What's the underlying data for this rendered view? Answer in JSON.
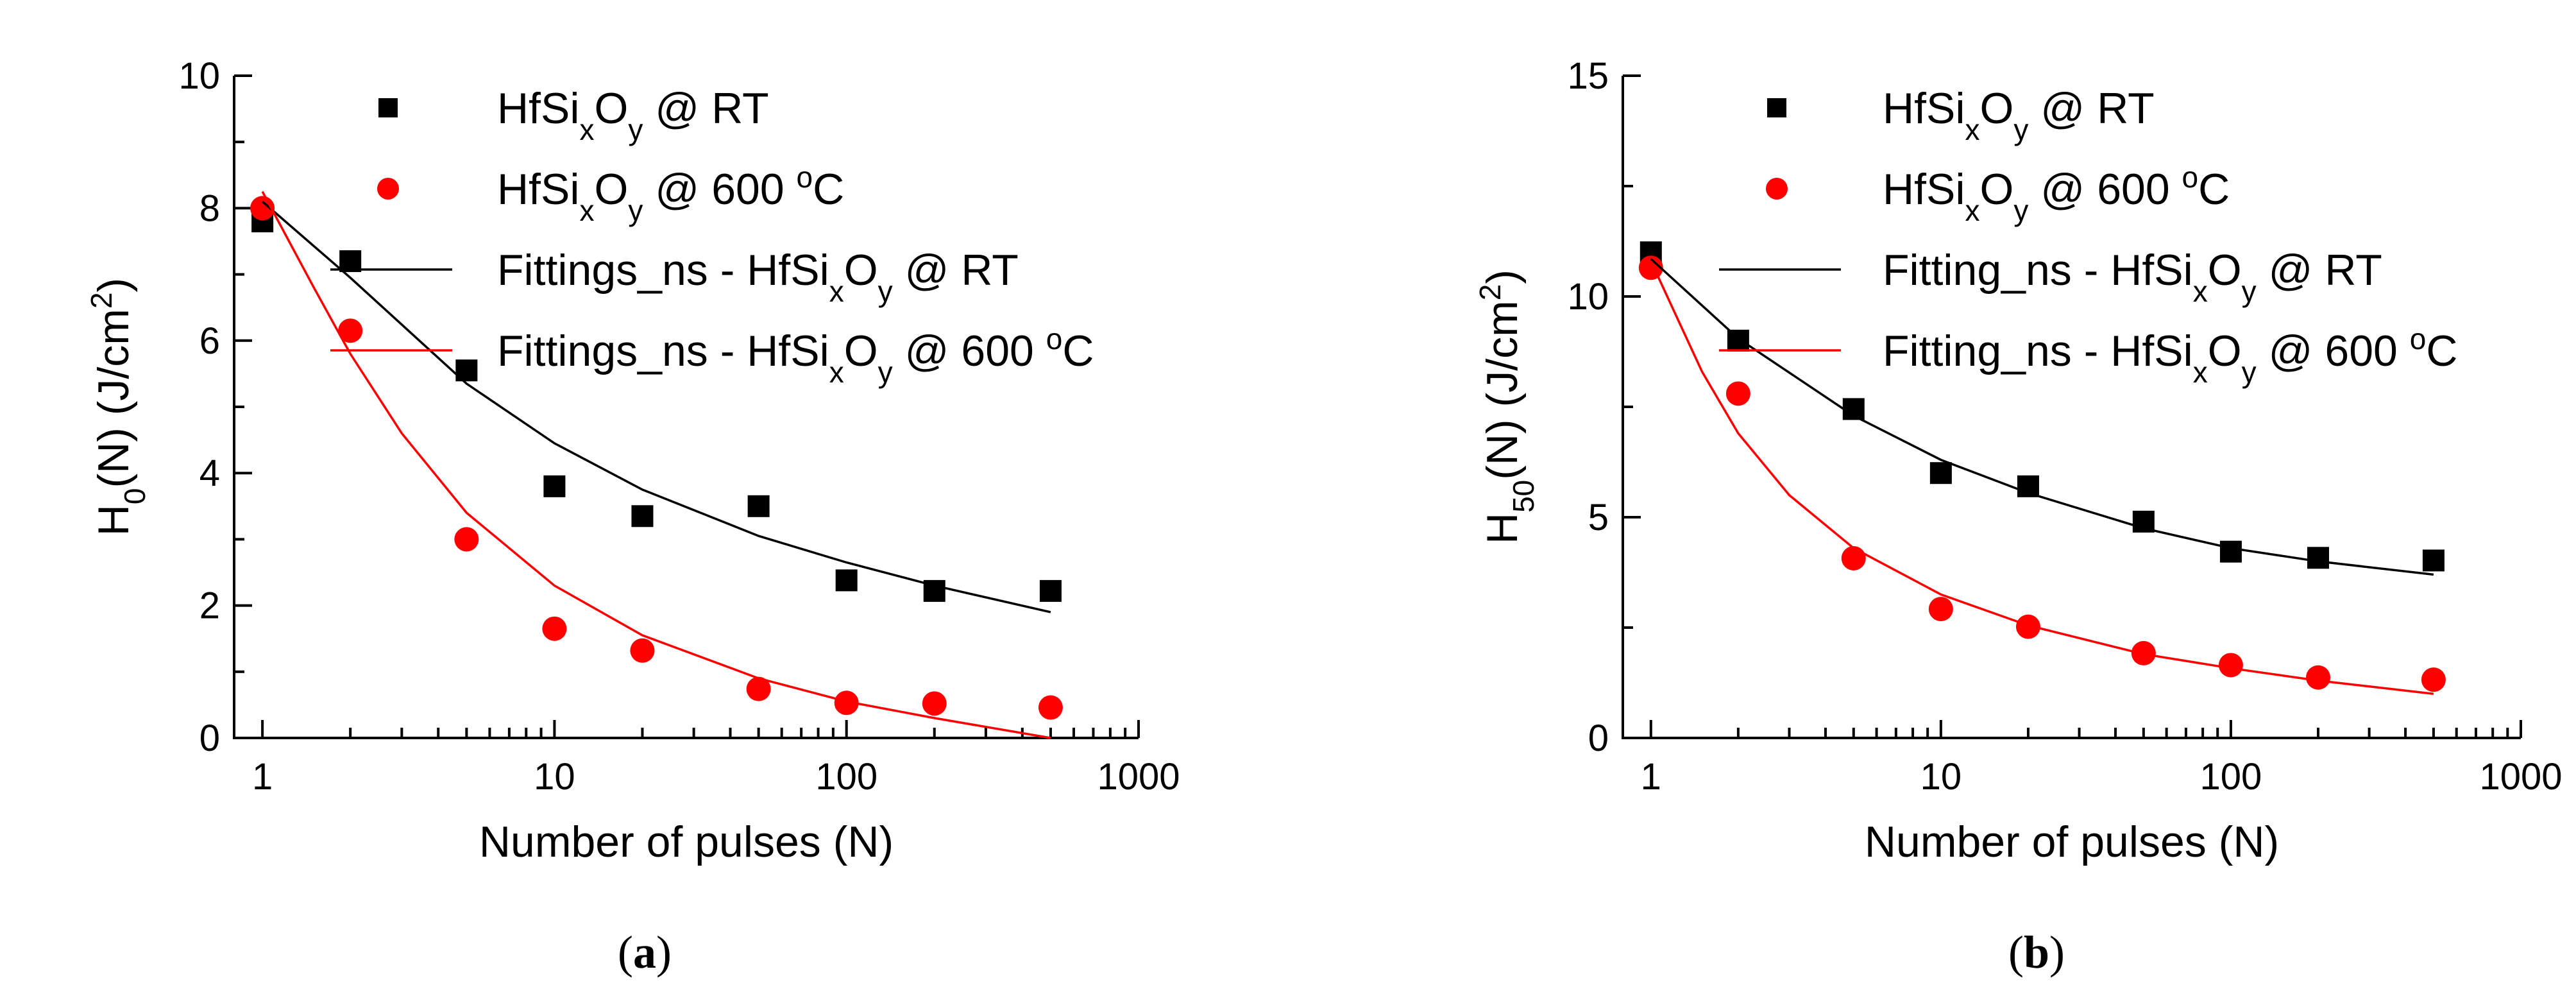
{
  "chart_data": [
    {
      "type": "scatter",
      "panel_label": "a",
      "xscale": "log",
      "xlim": [
        0.8,
        1000
      ],
      "ylim": [
        0,
        10
      ],
      "xticks": [
        1,
        10,
        100,
        1000
      ],
      "yticks": [
        0,
        2,
        4,
        6,
        8,
        10
      ],
      "xlabel": "Number of pulses (N)",
      "ylabel": {
        "main": "H",
        "sub": "0",
        "rest": "(N) (J/cm",
        "sup": "2",
        "end": ")"
      },
      "legend_position": "top-right",
      "series": [
        {
          "name": "HfSixOy @ RT",
          "marker": "square",
          "color": "#000000",
          "x": [
            1,
            2,
            5,
            10,
            20,
            50,
            100,
            200,
            500
          ],
          "y": [
            7.8,
            7.2,
            5.55,
            3.8,
            3.35,
            3.5,
            2.38,
            2.22,
            2.22
          ]
        },
        {
          "name": "HfSixOy @ 600 oC",
          "marker": "circle",
          "color": "#ff0000",
          "x": [
            1,
            2,
            5,
            10,
            20,
            50,
            100,
            200,
            500
          ],
          "y": [
            8.0,
            6.15,
            3.0,
            1.65,
            1.32,
            0.74,
            0.53,
            0.52,
            0.46
          ]
        },
        {
          "name": "Fittings_ns - HfSixOy @ RT",
          "line": true,
          "color": "#000000",
          "x": [
            1,
            2,
            5,
            10,
            20,
            50,
            100,
            200,
            500
          ],
          "y": [
            8.1,
            6.95,
            5.35,
            4.45,
            3.75,
            3.05,
            2.65,
            2.3,
            1.9
          ]
        },
        {
          "name": "Fittings_ns - HfSixOy @ 600 oC",
          "line": true,
          "color": "#ff0000",
          "x": [
            1,
            1.5,
            2,
            3,
            5,
            10,
            20,
            50,
            100,
            200,
            500
          ],
          "y": [
            8.25,
            6.8,
            5.8,
            4.6,
            3.4,
            2.3,
            1.55,
            0.9,
            0.55,
            0.3,
            0.0
          ]
        }
      ],
      "legend": [
        {
          "pre": "HfSi",
          "sub1": "x",
          "mid": "O",
          "sub2": "y",
          "post": " @ RT"
        },
        {
          "pre": "HfSi",
          "sub1": "x",
          "mid": "O",
          "sub2": "y",
          "post": " @ 600 ",
          "sup": "o",
          "end": "C"
        },
        {
          "pre": "Fittings_ns - HfSi",
          "sub1": "x",
          "mid": "O",
          "sub2": "y",
          "post": " @ RT"
        },
        {
          "pre": "Fittings_ns - HfSi",
          "sub1": "x",
          "mid": "O",
          "sub2": "y",
          "post": " @ 600 ",
          "sup": "o",
          "end": "C"
        }
      ]
    },
    {
      "type": "scatter",
      "panel_label": "b",
      "xscale": "log",
      "xlim": [
        0.8,
        1000
      ],
      "ylim": [
        0,
        15
      ],
      "xticks": [
        1,
        10,
        100,
        1000
      ],
      "yticks": [
        0,
        5,
        10,
        15
      ],
      "xlabel": "Number of pulses (N)",
      "ylabel": {
        "main": "H",
        "sub": "50",
        "rest": "(N) (J/cm",
        "sup": "2",
        "end": ")"
      },
      "legend_position": "top-right",
      "series": [
        {
          "name": "HfSixOy @ RT",
          "marker": "square",
          "color": "#000000",
          "x": [
            1,
            2,
            5,
            10,
            20,
            50,
            100,
            200,
            500
          ],
          "y": [
            11.0,
            9.0,
            7.45,
            6.0,
            5.7,
            4.9,
            4.22,
            4.08,
            4.02
          ]
        },
        {
          "name": "HfSixOy @ 600 oC",
          "marker": "circle",
          "color": "#ff0000",
          "x": [
            1,
            2,
            5,
            10,
            20,
            50,
            100,
            200,
            500
          ],
          "y": [
            10.65,
            7.8,
            4.07,
            2.92,
            2.52,
            1.92,
            1.65,
            1.37,
            1.32
          ]
        },
        {
          "name": "Fitting_ns - HfSixOy @ RT",
          "line": true,
          "color": "#000000",
          "x": [
            1,
            2,
            5,
            10,
            20,
            50,
            100,
            200,
            500
          ],
          "y": [
            10.85,
            9.05,
            7.3,
            6.3,
            5.55,
            4.75,
            4.3,
            4.0,
            3.7
          ]
        },
        {
          "name": "Fitting_ns - HfSixOy @ 600 oC",
          "line": true,
          "color": "#ff0000",
          "x": [
            1,
            1.5,
            2,
            3,
            5,
            10,
            20,
            50,
            100,
            200,
            500
          ],
          "y": [
            10.8,
            8.3,
            6.9,
            5.5,
            4.3,
            3.25,
            2.55,
            1.9,
            1.58,
            1.3,
            1.0
          ]
        }
      ],
      "legend": [
        {
          "pre": "HfSi",
          "sub1": "x",
          "mid": "O",
          "sub2": "y",
          "post": " @ RT"
        },
        {
          "pre": "HfSi",
          "sub1": "x",
          "mid": "O",
          "sub2": "y",
          "post": " @ 600 ",
          "sup": "o",
          "end": "C"
        },
        {
          "pre": "Fitting_ns - HfSi",
          "sub1": "x",
          "mid": "O",
          "sub2": "y",
          "post": " @ RT"
        },
        {
          "pre": "Fitting_ns - HfSi",
          "sub1": "x",
          "mid": "O",
          "sub2": "y",
          "post": " @ 600 ",
          "sup": "o",
          "end": "C"
        }
      ]
    }
  ]
}
